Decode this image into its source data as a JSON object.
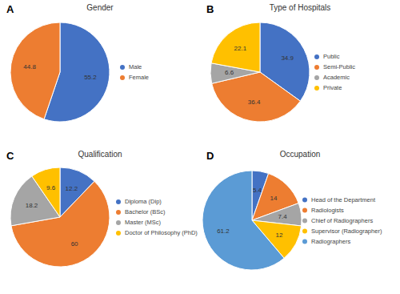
{
  "chart_data": [
    {
      "type": "pie",
      "annotation": "A",
      "title": "Gender",
      "categories": [
        "Male",
        "Female"
      ],
      "values": [
        55.2,
        44.8
      ],
      "colors": [
        "#4472c4",
        "#ed7d31"
      ],
      "data_labels": true,
      "legend": "right"
    },
    {
      "type": "pie",
      "annotation": "B",
      "title": "Type of Hospitals",
      "categories": [
        "Public",
        "Semi-Public",
        "Academic",
        "Private"
      ],
      "values": [
        34.9,
        36.4,
        6.6,
        22.1
      ],
      "colors": [
        "#4472c4",
        "#ed7d31",
        "#a5a5a5",
        "#ffc000"
      ],
      "data_labels": true,
      "legend": "right"
    },
    {
      "type": "pie",
      "annotation": "C",
      "title": "Qualification",
      "categories": [
        "Diploma (Dip)",
        "Bachelor (BSc)",
        "Master (MSc)",
        "Doctor of Philosophy (PhD)"
      ],
      "values": [
        12.2,
        60,
        18.2,
        9.6
      ],
      "colors": [
        "#4472c4",
        "#ed7d31",
        "#a5a5a5",
        "#ffc000"
      ],
      "data_labels": true,
      "legend": "right"
    },
    {
      "type": "pie",
      "annotation": "D",
      "title": "Occupation",
      "categories": [
        "Head of the Department",
        "Radiologists",
        "Chief of Radiographers",
        "Supervisor (Radiographer)",
        "Radiographers"
      ],
      "values": [
        5.4,
        14,
        7.4,
        12,
        61.2
      ],
      "colors": [
        "#4472c4",
        "#ed7d31",
        "#a5a5a5",
        "#ffc000",
        "#5b9bd5"
      ],
      "data_labels": true,
      "legend": "right"
    }
  ]
}
